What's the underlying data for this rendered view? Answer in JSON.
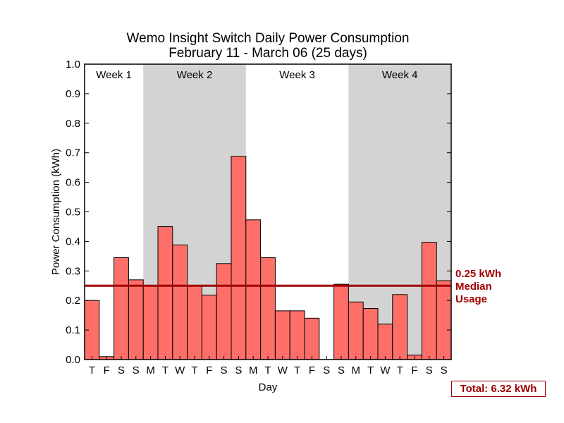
{
  "chart_data": {
    "type": "bar",
    "title": "Wemo Insight Switch Daily Power Consumption",
    "subtitle": "February 11 - March 06 (25 days)",
    "xlabel": "Day",
    "ylabel": "Power Consumption (kWh)",
    "ylim": [
      0,
      1.0
    ],
    "yticks": [
      "0.0",
      "0.1",
      "0.2",
      "0.3",
      "0.4",
      "0.5",
      "0.6",
      "0.7",
      "0.8",
      "0.9",
      "1.0"
    ],
    "categories": [
      "T",
      "F",
      "S",
      "S",
      "M",
      "T",
      "W",
      "T",
      "F",
      "S",
      "S",
      "M",
      "T",
      "W",
      "T",
      "F",
      "S",
      "S",
      "M",
      "T",
      "W",
      "T",
      "F",
      "S",
      "S"
    ],
    "values": [
      0.2,
      0.01,
      0.345,
      0.27,
      0.25,
      0.45,
      0.388,
      0.25,
      0.218,
      0.325,
      0.688,
      0.473,
      0.345,
      0.165,
      0.165,
      0.14,
      0.0,
      0.255,
      0.195,
      0.173,
      0.12,
      0.22,
      0.015,
      0.397,
      0.267
    ],
    "bar_color": "#ff6f69",
    "shade_color": "#d3d3d3",
    "weeks": [
      {
        "label": "Week 1",
        "start": 0,
        "end": 4,
        "shaded": false
      },
      {
        "label": "Week 2",
        "start": 4,
        "end": 11,
        "shaded": true
      },
      {
        "label": "Week 3",
        "start": 11,
        "end": 18,
        "shaded": false
      },
      {
        "label": "Week 4",
        "start": 18,
        "end": 25,
        "shaded": true
      }
    ],
    "median": {
      "value": 0.25,
      "lines": [
        "0.25 kWh",
        "Median",
        "Usage"
      ],
      "color": "#a00000"
    },
    "total_label": "Total: 6.32 kWh",
    "grid": false
  }
}
